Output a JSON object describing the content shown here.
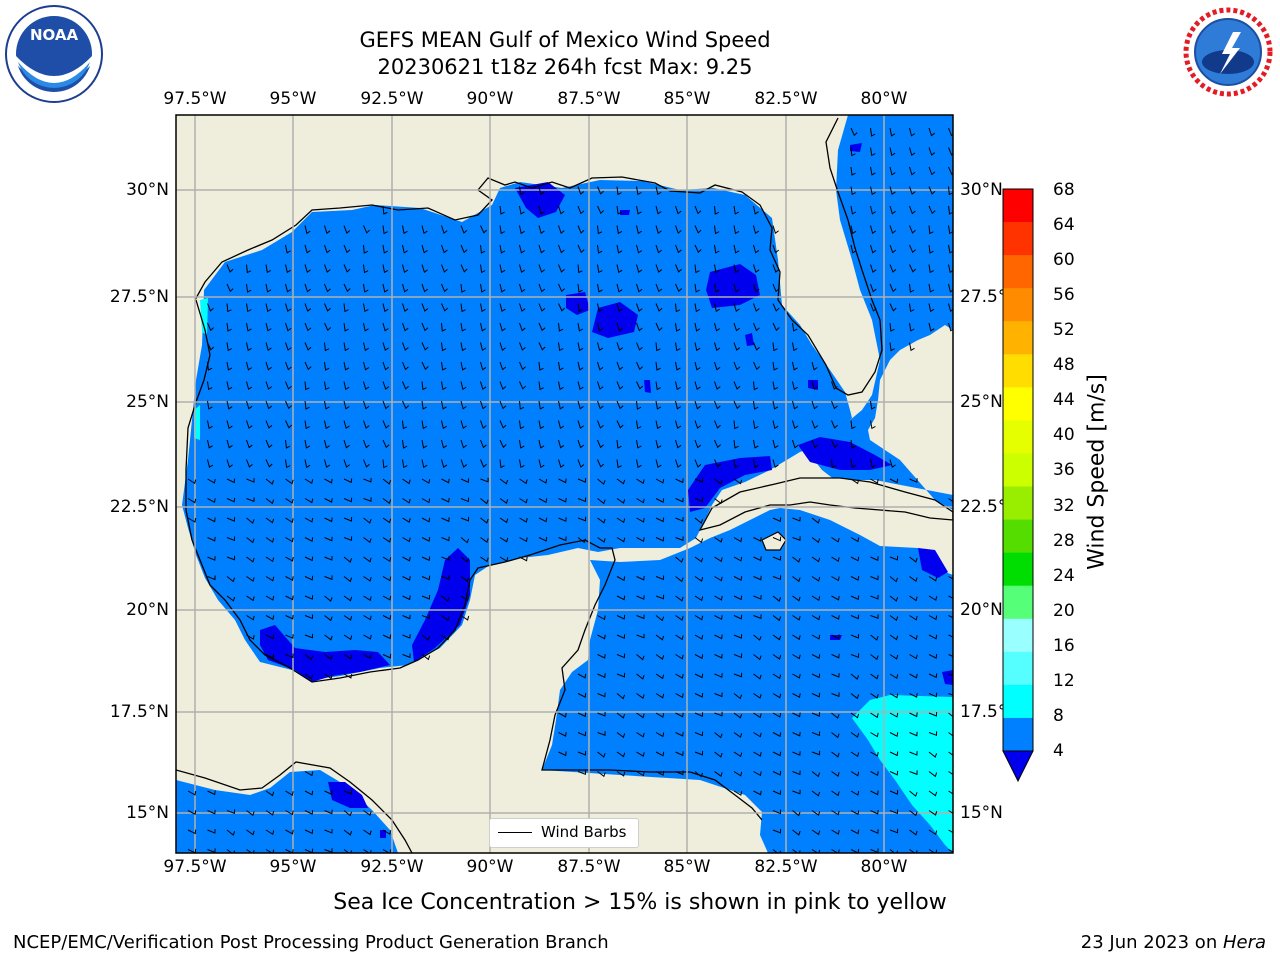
{
  "header": {
    "title_line1": "GEFS MEAN Gulf of Mexico Wind Speed",
    "title_line2": "20230621 t18z 264h fcst   Max: 9.25"
  },
  "logos": {
    "noaa": {
      "name": "NOAA",
      "ring_text": "NATIONAL OCEANIC AND ATMOSPHERIC ADMINISTRATION · U.S. DEPARTMENT OF COMMERCE"
    },
    "nws": {
      "ring_text": "NATIONAL WEATHER SERVICE"
    }
  },
  "map": {
    "lon_labels": [
      "97.5°W",
      "95°W",
      "92.5°W",
      "90°W",
      "87.5°W",
      "85°W",
      "82.5°W",
      "80°W"
    ],
    "lat_labels": [
      "30°N",
      "27.5°N",
      "25°N",
      "22.5°N",
      "20°N",
      "17.5°N",
      "15°N"
    ],
    "lat_labels_right": [
      "30°N",
      "27.5°",
      "25°N",
      "22.5°",
      "20°N",
      "17.5°",
      "15°N"
    ],
    "colors": {
      "land": "#efeddb",
      "ocean_fill_4_8": "#0080ff",
      "fill_0_4": "#0000ee",
      "fill_8_12": "#00ffff",
      "coastline": "#000000",
      "grid": "#b0b0b0"
    },
    "legend_label": "Wind Barbs"
  },
  "colorbar": {
    "label": "Wind Speed [m/s]",
    "ticks": [
      "68",
      "64",
      "60",
      "56",
      "52",
      "48",
      "44",
      "40",
      "36",
      "32",
      "28",
      "24",
      "20",
      "16",
      "12",
      "8",
      "4"
    ],
    "colors": [
      "#ff0000",
      "#ff3300",
      "#ff6600",
      "#ff8c00",
      "#ffb300",
      "#ffdd00",
      "#ffff00",
      "#e6ff00",
      "#ccff00",
      "#99ee00",
      "#55dd00",
      "#00dd00",
      "#55ff77",
      "#99ffff",
      "#55ffff",
      "#00ffff",
      "#0080ff"
    ],
    "under_color": "#0000ee"
  },
  "caption": "Sea Ice Concentration > 15% is shown in pink to yellow",
  "footer": {
    "left": "NCEP/EMC/Verification Post Processing Product Generation Branch",
    "date": "23 Jun 2023 on ",
    "machine": "Hera"
  }
}
